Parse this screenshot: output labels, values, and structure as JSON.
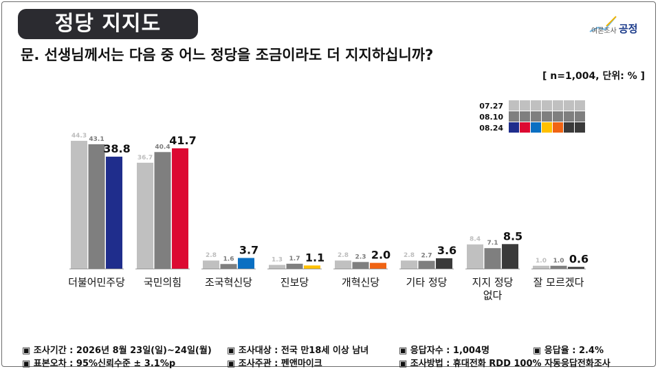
{
  "header": {
    "title": "정당 지지도",
    "question": "문. 선생님께서는 다음 중 어느 정당을 조금이라도 더 지지하십니까?",
    "unit": "[ n=1,004, 단위: % ]",
    "logo_text_a": "여론조사",
    "logo_text_b": "공정"
  },
  "chart_data": {
    "type": "bar",
    "categories": [
      "더불어민주당",
      "국민의힘",
      "조국혁신당",
      "진보당",
      "개혁신당",
      "기타 정당",
      "지지 정당 없다",
      "잘 모르겠다"
    ],
    "category_lines": [
      [
        "더불어민주당"
      ],
      [
        "국민의힘"
      ],
      [
        "조국혁신당"
      ],
      [
        "진보당"
      ],
      [
        "개혁신당"
      ],
      [
        "기타 정당"
      ],
      [
        "지지 정당",
        "없다"
      ],
      [
        "잘 모르겠다"
      ]
    ],
    "series": [
      {
        "name": "07.27",
        "values": [
          44.3,
          36.7,
          2.8,
          1.3,
          2.8,
          2.8,
          8.4,
          1.0
        ]
      },
      {
        "name": "08.10",
        "values": [
          43.1,
          40.4,
          1.6,
          1.7,
          2.3,
          2.7,
          7.1,
          1.0
        ]
      },
      {
        "name": "08.24",
        "values": [
          38.8,
          41.7,
          3.7,
          1.1,
          2.0,
          3.6,
          8.5,
          0.6
        ]
      }
    ],
    "series_colors": [
      "#c0c0c0",
      "#7f7f7f",
      null
    ],
    "latest_colors": [
      "#1f2d8c",
      "#dc0a32",
      "#0a6fc2",
      "#ffc000",
      "#f06414",
      "#3a3a3a",
      "#3a3a3a",
      "#3a3a3a"
    ],
    "legend_swatches": {
      "07.27": [
        "#c0c0c0",
        "#c0c0c0",
        "#c0c0c0",
        "#c0c0c0",
        "#c0c0c0",
        "#c0c0c0",
        "#c0c0c0"
      ],
      "08.10": [
        "#7f7f7f",
        "#7f7f7f",
        "#7f7f7f",
        "#7f7f7f",
        "#7f7f7f",
        "#7f7f7f",
        "#7f7f7f"
      ],
      "08.24": [
        "#1f2d8c",
        "#dc0a32",
        "#0a6fc2",
        "#ffc000",
        "#f06414",
        "#3a3a3a",
        "#3a3a3a"
      ]
    },
    "legend_position": "top-right",
    "ylim": [
      0,
      50
    ],
    "grid": false
  },
  "footer": {
    "items": [
      "▣ 조사기간 : 2026년 8월 23일(일)~24일(월)",
      "▣ 조사대상 : 전국 만18세 이상 남녀",
      "▣ 응답자수 : 1,004명",
      "▣ 응답율 : 2.4%",
      "▣ 표본오차 : 95%신뢰수준 ± 3.1%p",
      "▣ 조사주관 : 펜앤마이크",
      "▣ 조사방법 : 휴대전화 RDD 100% 자동응답전화조사"
    ]
  }
}
